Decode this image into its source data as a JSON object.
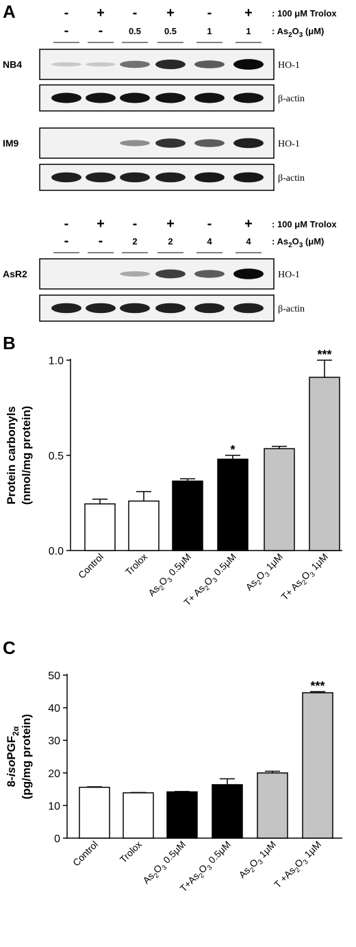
{
  "panel_a": {
    "letter": "A",
    "blocks": [
      {
        "trolox": [
          "-",
          "+",
          "-",
          "+",
          "-",
          "+"
        ],
        "as2o3": [
          "-",
          "-",
          "0.5",
          "0.5",
          "1",
          "1"
        ],
        "trolox_label": ": 100 μM Trolox",
        "as_label_prefix": ": As",
        "as_label_sub1": "2",
        "as_label_mid": "O",
        "as_label_sub2": "3",
        "as_label_suffix": " (μM)"
      },
      {
        "trolox": [
          "-",
          "+",
          "-",
          "+",
          "-",
          "+"
        ],
        "as2o3": [
          "-",
          "-",
          "2",
          "2",
          "4",
          "4"
        ],
        "trolox_label": ": 100 μM Trolox",
        "as_label_prefix": ": As",
        "as_label_sub1": "2",
        "as_label_mid": "O",
        "as_label_sub2": "3",
        "as_label_suffix": " (μM)"
      }
    ],
    "blots": [
      {
        "cell_line": "NB4",
        "band": "HO-1",
        "intensity": [
          0.02,
          0.02,
          0.45,
          0.8,
          0.55,
          0.95
        ]
      },
      {
        "cell_line": "",
        "band": "β-actin",
        "intensity": [
          0.9,
          0.9,
          0.9,
          0.9,
          0.9,
          0.9
        ]
      },
      {
        "cell_line": "IM9",
        "band": "HO-1",
        "intensity": [
          0.0,
          0.0,
          0.3,
          0.75,
          0.55,
          0.85
        ]
      },
      {
        "cell_line": "",
        "band": "β-actin",
        "intensity": [
          0.85,
          0.85,
          0.85,
          0.85,
          0.88,
          0.88
        ]
      },
      {
        "cell_line": "AsR2",
        "band": "HO-1",
        "intensity": [
          0.0,
          0.0,
          0.18,
          0.7,
          0.55,
          0.95
        ]
      },
      {
        "cell_line": "",
        "band": "β-actin",
        "intensity": [
          0.85,
          0.85,
          0.85,
          0.85,
          0.85,
          0.85
        ]
      }
    ]
  },
  "chart_data": [
    {
      "panel": "B",
      "type": "bar",
      "categories": [
        {
          "pre": "Control",
          "s1": "",
          "mid": "",
          "s2": "",
          "post": ""
        },
        {
          "pre": "Trolox",
          "s1": "",
          "mid": "",
          "s2": "",
          "post": ""
        },
        {
          "pre": "As",
          "s1": "2",
          "mid": "O",
          "s2": "3",
          "post": " 0.5μM"
        },
        {
          "pre": "T+ As",
          "s1": "2",
          "mid": "O",
          "s2": "3",
          "post": " 0.5μM"
        },
        {
          "pre": "As",
          "s1": "2",
          "mid": "O",
          "s2": "3",
          "post": " 1μM"
        },
        {
          "pre": "T+ As",
          "s1": "2",
          "mid": "O",
          "s2": "3",
          "post": " 1μM"
        }
      ],
      "values": [
        0.245,
        0.26,
        0.365,
        0.48,
        0.535,
        0.91
      ],
      "errors": [
        0.025,
        0.05,
        0.012,
        0.02,
        0.012,
        0.09
      ],
      "fills": [
        "#ffffff",
        "#ffffff",
        "#000000",
        "#000000",
        "#c4c4c4",
        "#c4c4c4"
      ],
      "significance": [
        "",
        "",
        "",
        "*",
        "",
        "***"
      ],
      "ylabel_line1": "Protein carbonyls",
      "ylabel_line2": "(nmol/mg protein)",
      "ylim": [
        0,
        1.0
      ],
      "yticks": [
        "0.0",
        "0.5",
        "1.0"
      ]
    },
    {
      "panel": "C",
      "type": "bar",
      "categories": [
        {
          "pre": "Control",
          "s1": "",
          "mid": "",
          "s2": "",
          "post": ""
        },
        {
          "pre": "Trolox",
          "s1": "",
          "mid": "",
          "s2": "",
          "post": ""
        },
        {
          "pre": "As",
          "s1": "2",
          "mid": "O",
          "s2": "3",
          "post": " 0.5μM"
        },
        {
          "pre": "T+As",
          "s1": "2",
          "mid": "O",
          "s2": "3",
          "post": " 0.5μM"
        },
        {
          "pre": "As",
          "s1": "2",
          "mid": "O",
          "s2": "3",
          "post": " 1μM"
        },
        {
          "pre": "T +As",
          "s1": "2",
          "mid": "O",
          "s2": "3",
          "post": " 1μM"
        }
      ],
      "values": [
        15.6,
        13.9,
        14.2,
        16.4,
        20.0,
        44.6
      ],
      "errors": [
        0.15,
        0.1,
        0.1,
        1.8,
        0.5,
        0.35
      ],
      "fills": [
        "#ffffff",
        "#ffffff",
        "#000000",
        "#000000",
        "#c4c4c4",
        "#c4c4c4"
      ],
      "significance": [
        "",
        "",
        "",
        "",
        "",
        "***"
      ],
      "ylabel_line1_pre": "8-",
      "ylabel_line1_italic": "iso",
      "ylabel_line1_mid": "PGF",
      "ylabel_line1_sub": "2α",
      "ylabel_line2": "(pg/mg protein)",
      "ylim": [
        0,
        50
      ],
      "yticks": [
        "0",
        "10",
        "20",
        "30",
        "40",
        "50"
      ]
    }
  ]
}
